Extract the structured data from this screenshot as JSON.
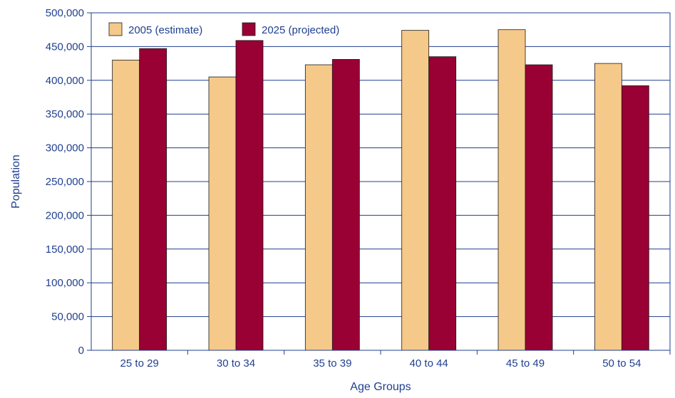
{
  "chart_data": {
    "type": "bar",
    "title": "",
    "xlabel": "Age Groups",
    "ylabel": "Population",
    "categories": [
      "25 to 29",
      "30 to 34",
      "35 to 39",
      "40 to 44",
      "45 to 49",
      "50 to 54"
    ],
    "series": [
      {
        "name": "2005 (estimate)",
        "color": "#f5c98a",
        "values": [
          430000,
          405000,
          423000,
          474000,
          475000,
          425000
        ]
      },
      {
        "name": "2025 (projected)",
        "color": "#990033",
        "values": [
          447000,
          459000,
          431000,
          435000,
          423000,
          392000
        ]
      }
    ],
    "ylim": [
      0,
      500000
    ],
    "yticks": [
      "0",
      "50,000",
      "100,000",
      "150,000",
      "200,000",
      "250,000",
      "300,000",
      "350,000",
      "400,000",
      "450,000",
      "500,000"
    ],
    "grid": true,
    "legend_position": "top-left",
    "colors": {
      "axis": "#1f3f8f",
      "grid": "#1f3f8f",
      "bar_outline": "#1a1a1a"
    }
  }
}
